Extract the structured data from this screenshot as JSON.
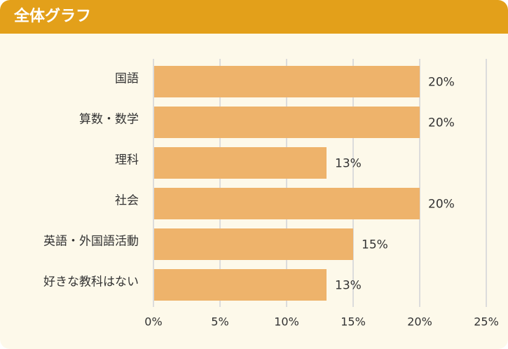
{
  "header": {
    "title": "全体グラフ"
  },
  "chart_data": {
    "type": "bar",
    "orientation": "horizontal",
    "categories": [
      "国語",
      "算数・数学",
      "理科",
      "社会",
      "英語・外国語活動",
      "好きな教科はない"
    ],
    "values": [
      20,
      20,
      13,
      20,
      15,
      13
    ],
    "data_labels": [
      "20%",
      "20%",
      "13%",
      "20%",
      "15%",
      "13%"
    ],
    "xlim": [
      0,
      25
    ],
    "x_ticks": [
      0,
      5,
      10,
      15,
      20,
      25
    ],
    "x_tick_labels": [
      "0%",
      "5%",
      "10%",
      "15%",
      "20%",
      "25%"
    ],
    "grid": true,
    "colors": {
      "bar": "#eeb36b",
      "grid": "#dcdcdc",
      "header": "#e3a01a",
      "background": "#fdf9ea",
      "text": "#333333"
    }
  }
}
